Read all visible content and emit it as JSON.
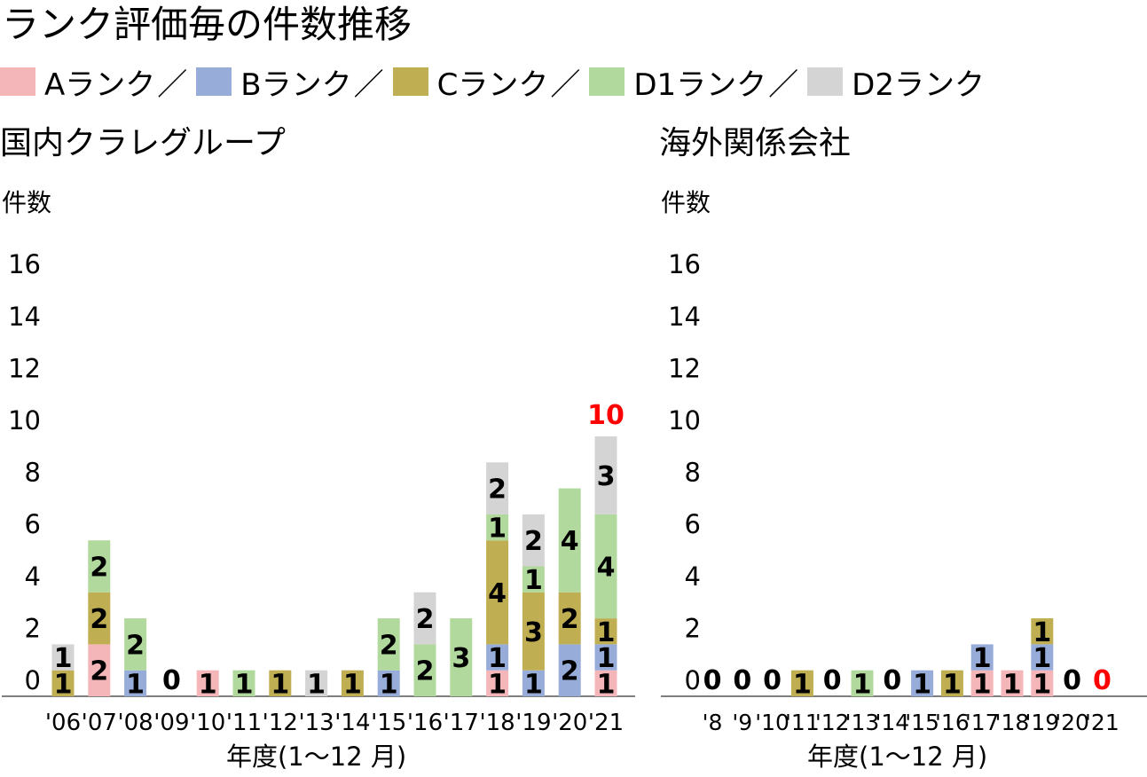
{
  "title": "ランク評価毎の件数推移",
  "legend": [
    {
      "name": "Aランク",
      "color": "#f4b6b8"
    },
    {
      "name": "Bランク",
      "color": "#97acd9"
    },
    {
      "name": "Cランク",
      "color": "#c0ae52"
    },
    {
      "name": "D1ランク",
      "color": "#b2d99d"
    },
    {
      "name": "D2ランク",
      "color": "#d4d4d4"
    }
  ],
  "legend_separator": "／",
  "highlight_color": "#ff0000",
  "chart_data": [
    {
      "type": "bar",
      "stacked": true,
      "title": "国内クラレグループ",
      "ylabel": "件数",
      "xlabel": "年度(1～12 月)",
      "yticks": [
        "0",
        "2",
        "4",
        "6",
        "8",
        "10",
        "12",
        "14",
        "16"
      ],
      "ylim": [
        0,
        16
      ],
      "grid": false,
      "legend": "top",
      "categories": [
        "'06",
        "'07",
        "'08",
        "'09",
        "'10",
        "'11",
        "'12",
        "'13",
        "'14",
        "'15",
        "'16",
        "'17",
        "'18",
        "'19",
        "'20",
        "'21"
      ],
      "series": [
        {
          "name": "Aランク",
          "values": [
            0,
            2,
            0,
            0,
            1,
            0,
            0,
            0,
            0,
            0,
            0,
            0,
            1,
            0,
            0,
            1
          ]
        },
        {
          "name": "Bランク",
          "values": [
            0,
            0,
            1,
            0,
            0,
            0,
            0,
            0,
            0,
            1,
            0,
            0,
            1,
            1,
            2,
            1
          ]
        },
        {
          "name": "Cランク",
          "values": [
            1,
            2,
            0,
            0,
            0,
            0,
            1,
            0,
            1,
            0,
            0,
            0,
            4,
            3,
            2,
            1
          ]
        },
        {
          "name": "D1ランク",
          "values": [
            0,
            2,
            2,
            0,
            0,
            1,
            0,
            0,
            0,
            2,
            2,
            3,
            1,
            1,
            4,
            4
          ]
        },
        {
          "name": "D2ランク",
          "values": [
            1,
            0,
            0,
            0,
            0,
            0,
            0,
            1,
            0,
            0,
            2,
            0,
            2,
            2,
            0,
            3
          ]
        }
      ],
      "zero_labels": [
        "0"
      ],
      "total_label": {
        "category": "'21",
        "text": "10"
      }
    },
    {
      "type": "bar",
      "stacked": true,
      "title": "海外関係会社",
      "ylabel": "件数",
      "xlabel": "年度(1～12 月)",
      "yticks": [
        "0",
        "2",
        "4",
        "6",
        "8",
        "10",
        "12",
        "14",
        "16"
      ],
      "ylim": [
        0,
        16
      ],
      "grid": false,
      "legend": "top",
      "categories": [
        "'8",
        "'9",
        "'10",
        "'11",
        "'12",
        "'13",
        "'14",
        "'15",
        "'16",
        "'17",
        "'18",
        "'19",
        "'20",
        "'21"
      ],
      "series": [
        {
          "name": "Aランク",
          "values": [
            0,
            0,
            0,
            0,
            0,
            0,
            0,
            0,
            0,
            1,
            1,
            1,
            0,
            0
          ]
        },
        {
          "name": "Bランク",
          "values": [
            0,
            0,
            0,
            0,
            0,
            0,
            0,
            1,
            0,
            1,
            0,
            1,
            0,
            0
          ]
        },
        {
          "name": "Cランク",
          "values": [
            0,
            0,
            0,
            1,
            0,
            0,
            0,
            0,
            1,
            0,
            0,
            1,
            0,
            0
          ]
        },
        {
          "name": "D1ランク",
          "values": [
            0,
            0,
            0,
            0,
            0,
            1,
            0,
            0,
            0,
            0,
            0,
            0,
            0,
            0
          ]
        },
        {
          "name": "D2ランク",
          "values": [
            0,
            0,
            0,
            0,
            0,
            0,
            0,
            0,
            0,
            0,
            0,
            0,
            0,
            0
          ]
        }
      ],
      "zero_labels": [
        "0"
      ],
      "total_label": {
        "category": "'21",
        "text": "0"
      }
    }
  ]
}
